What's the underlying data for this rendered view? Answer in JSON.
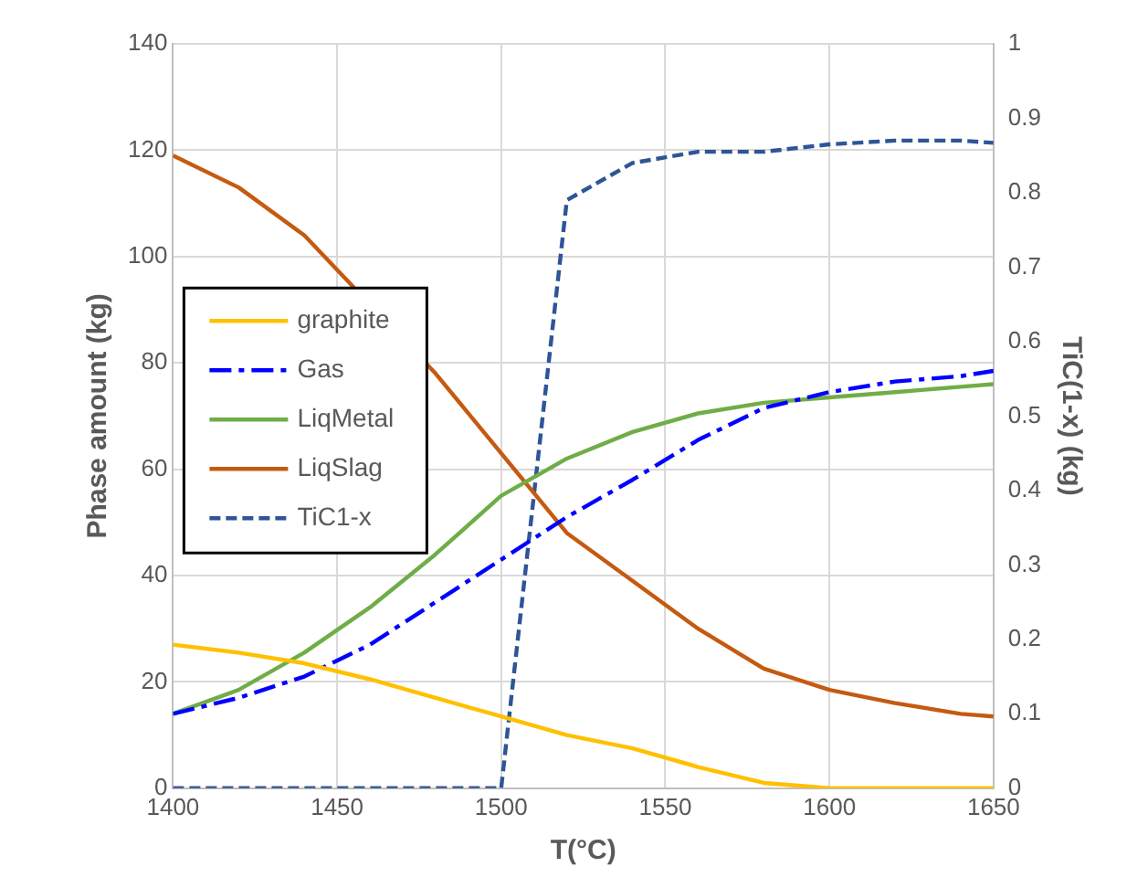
{
  "chart_data": {
    "type": "line",
    "xlabel": "T(°C)",
    "ylabel": "Phase amount (kg)",
    "y2label": "TiC(1-x) (kg)",
    "x": [
      1400,
      1420,
      1440,
      1460,
      1480,
      1500,
      1520,
      1540,
      1560,
      1580,
      1600,
      1620,
      1640,
      1650
    ],
    "xlim": [
      1400,
      1650
    ],
    "xticks": [
      1400,
      1450,
      1500,
      1550,
      1600,
      1650
    ],
    "ylim": [
      0,
      140
    ],
    "yticks": [
      0,
      20,
      40,
      60,
      80,
      100,
      120,
      140
    ],
    "y2lim": [
      0,
      1
    ],
    "y2ticks": [
      0,
      0.1,
      0.2,
      0.3,
      0.4,
      0.5,
      0.6,
      0.7,
      0.8,
      0.9,
      1
    ],
    "grid": true,
    "legend": "left",
    "marker": "none",
    "series": [
      {
        "name": "graphite",
        "color": "#ffc000",
        "line_style": "solid",
        "values": [
          27,
          25.5,
          23.5,
          20.5,
          17,
          13.5,
          10,
          7.5,
          4,
          1,
          0,
          0,
          0,
          0
        ]
      },
      {
        "name": "Gas",
        "color": "#0000ff",
        "line_style": "dashdot",
        "values": [
          14,
          17,
          21,
          27,
          35,
          43,
          51,
          58,
          65.5,
          71.5,
          74.5,
          76.5,
          77.5,
          78.5
        ]
      },
      {
        "name": "LiqMetal",
        "color": "#70ad47",
        "line_style": "solid",
        "values": [
          14,
          18.5,
          25.5,
          34,
          44,
          55,
          62,
          67,
          70.5,
          72.5,
          73.5,
          74.5,
          75.5,
          76
        ]
      },
      {
        "name": "LiqSlag",
        "color": "#c55a11",
        "line_style": "solid",
        "values": [
          119,
          113,
          104,
          null,
          78,
          63,
          48,
          39,
          30,
          22.5,
          18.5,
          16,
          14,
          13.5
        ]
      },
      {
        "name": "TiC1-x",
        "color": "#2f5597",
        "line_style": "dashed",
        "axis": "y2",
        "values": [
          0,
          0,
          0,
          0,
          0,
          0,
          0.79,
          0.84,
          0.855,
          0.855,
          0.865,
          0.87,
          0.87,
          0.867
        ]
      }
    ]
  }
}
